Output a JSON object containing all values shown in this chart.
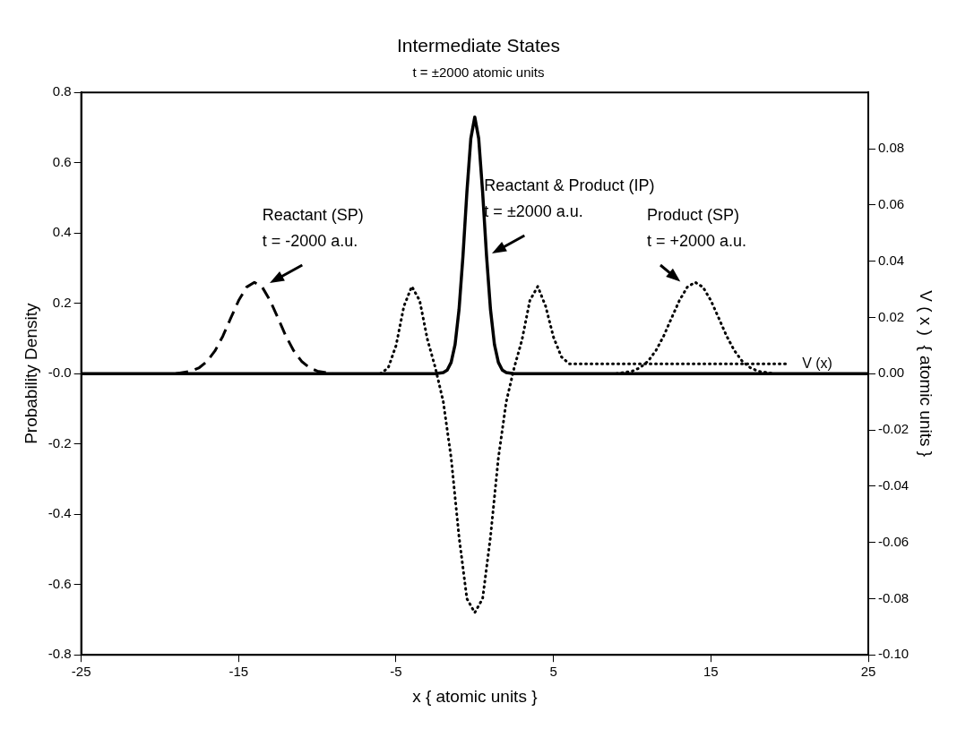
{
  "chart_data": {
    "type": "line",
    "title": "Intermediate States",
    "subtitle": "t = ±2000 atomic units",
    "xlabel": "x { atomic units }",
    "ylabel": "Probability Density",
    "y2label": "V ( x )  { atomic units }",
    "xlim": [
      -25,
      25
    ],
    "xticks": [
      -25,
      -15,
      -5,
      5,
      15,
      25
    ],
    "ylim": [
      -0.8,
      0.8
    ],
    "yticks": [
      -0.8,
      -0.6,
      -0.4,
      -0.2,
      {
        "value": 0,
        "label": "-0.0"
      },
      0.2,
      0.4,
      0.6,
      0.8
    ],
    "y2lim": [
      -0.1,
      0.1
    ],
    "y2ticks": [
      {
        "value": -0.1,
        "label": "-0.10"
      },
      -0.08,
      -0.06,
      -0.04,
      -0.02,
      {
        "value": 0,
        "label": "0.00"
      },
      0.02,
      0.04,
      0.06,
      0.08
    ],
    "grid": false,
    "legend": false,
    "marker": "none",
    "series": [
      {
        "color": "#000000",
        "line_style": "dashed",
        "x": [
          -19,
          -18,
          -17.5,
          -17,
          -16.5,
          -16,
          -15.5,
          -15,
          -14.5,
          -14,
          -13.5,
          -13,
          -12.5,
          -12,
          -11.5,
          -11,
          -10.5,
          -10,
          -9
        ],
        "values": [
          0,
          0.007,
          0.017,
          0.035,
          0.065,
          0.107,
          0.158,
          0.208,
          0.246,
          0.26,
          0.246,
          0.208,
          0.158,
          0.107,
          0.065,
          0.035,
          0.017,
          0.007,
          0
        ]
      },
      {
        "color": "#000000",
        "line_style": "solid",
        "x": [
          -25,
          -2.5,
          -2,
          -1.75,
          -1.5,
          -1.25,
          -1,
          -0.75,
          -0.5,
          -0.25,
          0,
          0.25,
          0.5,
          0.75,
          1,
          1.25,
          1.5,
          1.75,
          2,
          2.5,
          25
        ],
        "values": [
          0,
          0,
          0.003,
          0.01,
          0.032,
          0.083,
          0.182,
          0.334,
          0.516,
          0.669,
          0.73,
          0.669,
          0.516,
          0.334,
          0.182,
          0.083,
          0.032,
          0.01,
          0.003,
          0,
          0
        ]
      },
      {
        "color": "#000000",
        "line_style": "dotted",
        "x": [
          9,
          10,
          10.5,
          11,
          11.5,
          12,
          12.5,
          13,
          13.5,
          14,
          14.5,
          15,
          15.5,
          16,
          16.5,
          17,
          17.5,
          18,
          19
        ],
        "values": [
          0,
          0.007,
          0.017,
          0.035,
          0.065,
          0.107,
          0.158,
          0.208,
          0.246,
          0.26,
          0.246,
          0.208,
          0.158,
          0.107,
          0.065,
          0.035,
          0.017,
          0.007,
          0
        ]
      },
      {
        "name": "V (x)",
        "axis": "y2",
        "color": "#000000",
        "line_style": "dotted",
        "x": [
          -6,
          -5.5,
          -5,
          -4.5,
          -4,
          -3.5,
          -3,
          -2.5,
          -2,
          -1.5,
          -1,
          -0.5,
          0,
          0.5,
          1,
          1.5,
          2,
          2.5,
          3,
          3.5,
          4,
          4.5,
          5,
          5.5,
          6,
          20
        ],
        "values": [
          0,
          0.002,
          0.01,
          0.024,
          0.031,
          0.026,
          0.012,
          0.002,
          -0.01,
          -0.03,
          -0.058,
          -0.08,
          -0.085,
          -0.08,
          -0.058,
          -0.03,
          -0.01,
          0.002,
          0.012,
          0.026,
          0.031,
          0.024,
          0.013,
          0.006,
          0.0035,
          0.0035
        ]
      }
    ],
    "annotations": [
      {
        "text": "Reactant (SP)\nt = -2000 a.u.",
        "x": -13.5,
        "y": 0.245
      },
      {
        "text": "Reactant & Product (IP)\nt = ±2000 a.u.",
        "x": 0.6,
        "y": 0.33
      },
      {
        "text": "Product (SP)\nt = +2000 a.u.",
        "x": 13.5,
        "y": 0.245
      }
    ]
  }
}
